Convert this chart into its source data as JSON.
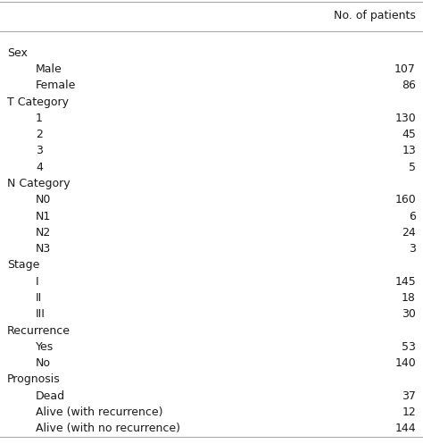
{
  "header": "No. of patients",
  "rows": [
    {
      "label": "Sex",
      "value": "",
      "indent": 0
    },
    {
      "label": "Male",
      "value": "107",
      "indent": 1
    },
    {
      "label": "Female",
      "value": "86",
      "indent": 1
    },
    {
      "label": "T Category",
      "value": "",
      "indent": 0
    },
    {
      "label": "1",
      "value": "130",
      "indent": 1
    },
    {
      "label": "2",
      "value": "45",
      "indent": 1
    },
    {
      "label": "3",
      "value": "13",
      "indent": 1
    },
    {
      "label": "4",
      "value": "5",
      "indent": 1
    },
    {
      "label": "N Category",
      "value": "",
      "indent": 0
    },
    {
      "label": "N0",
      "value": "160",
      "indent": 1
    },
    {
      "label": "N1",
      "value": "6",
      "indent": 1
    },
    {
      "label": "N2",
      "value": "24",
      "indent": 1
    },
    {
      "label": "N3",
      "value": "3",
      "indent": 1
    },
    {
      "label": "Stage",
      "value": "",
      "indent": 0
    },
    {
      "label": "I",
      "value": "145",
      "indent": 1
    },
    {
      "label": "II",
      "value": "18",
      "indent": 1
    },
    {
      "label": "III",
      "value": "30",
      "indent": 1
    },
    {
      "label": "Recurrence",
      "value": "",
      "indent": 0
    },
    {
      "label": "Yes",
      "value": "53",
      "indent": 1
    },
    {
      "label": "No",
      "value": "140",
      "indent": 1
    },
    {
      "label": "Prognosis",
      "value": "",
      "indent": 0
    },
    {
      "label": "Dead",
      "value": "37",
      "indent": 1
    },
    {
      "label": "Alive (with recurrence)",
      "value": "12",
      "indent": 1
    },
    {
      "label": "Alive (with no recurrence)",
      "value": "144",
      "indent": 1
    }
  ],
  "bg_color": "#ffffff",
  "text_color": "#1a1a1a",
  "font_size": 9.0,
  "header_font_size": 9.0,
  "line_color": "#aaaaaa",
  "fig_width": 4.74,
  "fig_height": 4.97,
  "dpi": 100
}
